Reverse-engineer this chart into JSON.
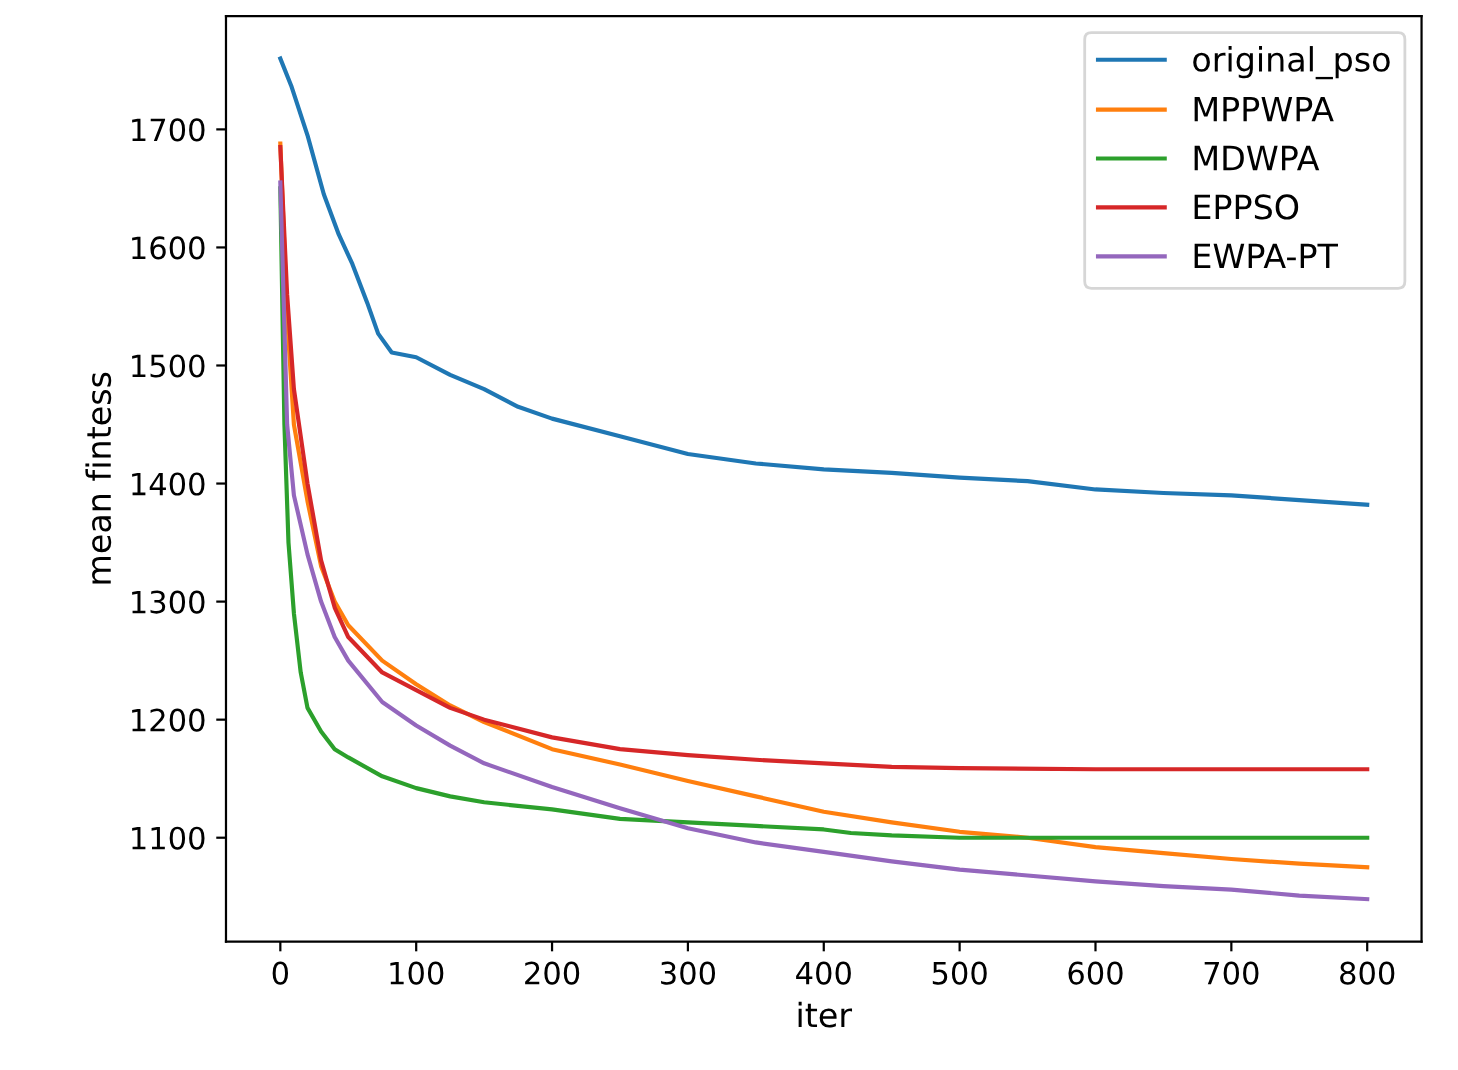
{
  "chart_data": {
    "type": "line",
    "xlabel": "iter",
    "ylabel": "mean fintess",
    "xlim": [
      -40,
      840
    ],
    "ylim": [
      1012,
      1796
    ],
    "xticks": [
      0,
      100,
      200,
      300,
      400,
      500,
      600,
      700,
      800
    ],
    "yticks": [
      1100,
      1200,
      1300,
      1400,
      1500,
      1600,
      1700
    ],
    "legend": "top right",
    "grid": false,
    "series": [
      {
        "name": "original_pso",
        "color": "#1f77b4",
        "x": [
          0,
          8,
          20,
          32,
          43,
          53,
          64,
          72,
          82,
          100,
          125,
          150,
          175,
          200,
          250,
          300,
          350,
          400,
          450,
          500,
          550,
          600,
          650,
          700,
          750,
          800
        ],
        "values": [
          1760,
          1737,
          1695,
          1645,
          1611,
          1586,
          1553,
          1527,
          1511,
          1507,
          1492,
          1480,
          1465,
          1455,
          1440,
          1425,
          1417,
          1412,
          1409,
          1405,
          1402,
          1395,
          1392,
          1390,
          1386,
          1382
        ]
      },
      {
        "name": "MPPWPA",
        "color": "#ff7f0e",
        "x": [
          0,
          5,
          10,
          20,
          30,
          40,
          50,
          75,
          100,
          125,
          150,
          200,
          250,
          300,
          350,
          400,
          450,
          500,
          550,
          600,
          650,
          700,
          750,
          800
        ],
        "values": [
          1688,
          1540,
          1450,
          1385,
          1330,
          1300,
          1280,
          1250,
          1230,
          1212,
          1198,
          1175,
          1162,
          1148,
          1135,
          1122,
          1113,
          1105,
          1100,
          1092,
          1087,
          1082,
          1078,
          1075
        ]
      },
      {
        "name": "MDWPA",
        "color": "#2ca02c",
        "x": [
          0,
          3,
          6,
          10,
          15,
          20,
          30,
          40,
          50,
          75,
          100,
          125,
          150,
          200,
          250,
          300,
          350,
          400,
          420,
          450,
          500,
          600,
          800
        ],
        "values": [
          1650,
          1450,
          1350,
          1290,
          1240,
          1210,
          1190,
          1175,
          1168,
          1152,
          1142,
          1135,
          1130,
          1124,
          1116,
          1113,
          1110,
          1107,
          1104,
          1102,
          1100,
          1100,
          1100
        ]
      },
      {
        "name": "EPPSO",
        "color": "#d62728",
        "x": [
          0,
          5,
          10,
          20,
          30,
          40,
          50,
          75,
          100,
          125,
          150,
          200,
          250,
          300,
          350,
          400,
          450,
          500,
          600,
          700,
          800
        ],
        "values": [
          1685,
          1560,
          1480,
          1400,
          1335,
          1295,
          1270,
          1240,
          1225,
          1210,
          1200,
          1185,
          1175,
          1170,
          1166,
          1163,
          1160,
          1159,
          1158,
          1158,
          1158
        ]
      },
      {
        "name": "EWPA-PT",
        "color": "#9467bd",
        "x": [
          0,
          5,
          10,
          20,
          30,
          40,
          50,
          75,
          100,
          125,
          150,
          200,
          250,
          300,
          350,
          400,
          450,
          500,
          550,
          600,
          650,
          700,
          750,
          800
        ],
        "values": [
          1655,
          1450,
          1390,
          1340,
          1300,
          1270,
          1250,
          1215,
          1195,
          1178,
          1163,
          1143,
          1125,
          1108,
          1096,
          1088,
          1080,
          1073,
          1068,
          1063,
          1059,
          1056,
          1051,
          1048
        ]
      }
    ]
  }
}
